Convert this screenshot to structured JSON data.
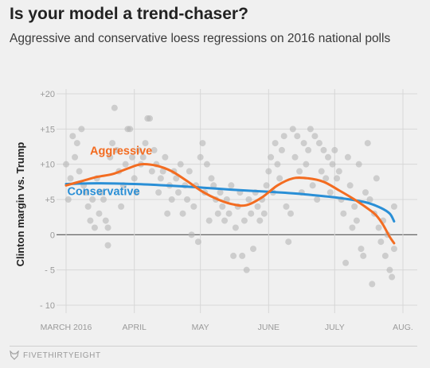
{
  "header": {
    "title": "Is your model a trend-chaser?",
    "subtitle": "Aggressive and conservative loess regressions on 2016 national polls"
  },
  "footer": {
    "brand": "FIVETHIRTYEIGHT",
    "icon": "fivethirtyeight-fox-icon"
  },
  "chart_data": {
    "type": "scatter",
    "xlabel": "",
    "ylabel": "Clinton margin vs. Trump",
    "x_domain": [
      "2016-03-01",
      "2016-08-01"
    ],
    "ylim": [
      -10,
      20
    ],
    "y_ticks": [
      {
        "value": 20,
        "label": "+20"
      },
      {
        "value": 15,
        "label": "+15"
      },
      {
        "value": 10,
        "label": "+10"
      },
      {
        "value": 5,
        "label": "+5"
      },
      {
        "value": 0,
        "label": "0"
      },
      {
        "value": -5,
        "label": "- 5"
      },
      {
        "value": -10,
        "label": "- 10"
      }
    ],
    "x_ticks": [
      {
        "date": "2016-03-01",
        "label": "MARCH 2016"
      },
      {
        "date": "2016-04-01",
        "label": "APRIL"
      },
      {
        "date": "2016-05-01",
        "label": "MAY"
      },
      {
        "date": "2016-06-01",
        "label": "JUNE"
      },
      {
        "date": "2016-07-01",
        "label": "JULY"
      },
      {
        "date": "2016-08-01",
        "label": "AUG."
      }
    ],
    "grid": true,
    "colors": {
      "aggressive": "#f36c21",
      "conservative": "#2a8fd6",
      "polls": "#b5b5b5",
      "grid": "#d7d7d7",
      "zero_line": "#555555"
    },
    "annotations": [
      {
        "text": "Aggressive",
        "series": "aggressive",
        "date": "2016-03-26",
        "y": 11.4
      },
      {
        "text": "Conservative",
        "series": "conservative",
        "date": "2016-03-18",
        "y": 5.6
      }
    ],
    "series": [
      {
        "name": "Aggressive",
        "key": "aggressive",
        "kind": "line",
        "points": [
          [
            "2016-03-01",
            7.0
          ],
          [
            "2016-03-08",
            7.6
          ],
          [
            "2016-03-15",
            8.2
          ],
          [
            "2016-03-22",
            8.6
          ],
          [
            "2016-03-29",
            9.4
          ],
          [
            "2016-04-04",
            10.0
          ],
          [
            "2016-04-11",
            9.8
          ],
          [
            "2016-04-18",
            9.0
          ],
          [
            "2016-04-25",
            7.6
          ],
          [
            "2016-05-02",
            6.1
          ],
          [
            "2016-05-09",
            5.0
          ],
          [
            "2016-05-16",
            4.3
          ],
          [
            "2016-05-22",
            4.2
          ],
          [
            "2016-05-29",
            5.3
          ],
          [
            "2016-06-05",
            7.0
          ],
          [
            "2016-06-12",
            8.0
          ],
          [
            "2016-06-19",
            8.0
          ],
          [
            "2016-06-26",
            7.5
          ],
          [
            "2016-07-03",
            6.3
          ],
          [
            "2016-07-10",
            5.0
          ],
          [
            "2016-07-17",
            3.5
          ],
          [
            "2016-07-20",
            2.7
          ],
          [
            "2016-07-23",
            1.4
          ],
          [
            "2016-07-26",
            -0.3
          ],
          [
            "2016-07-28",
            -1.2
          ]
        ]
      },
      {
        "name": "Conservative",
        "key": "conservative",
        "kind": "line",
        "points": [
          [
            "2016-03-01",
            7.2
          ],
          [
            "2016-03-15",
            7.3
          ],
          [
            "2016-04-01",
            7.2
          ],
          [
            "2016-04-15",
            7.0
          ],
          [
            "2016-05-01",
            6.7
          ],
          [
            "2016-05-15",
            6.4
          ],
          [
            "2016-06-01",
            6.1
          ],
          [
            "2016-06-15",
            5.8
          ],
          [
            "2016-07-01",
            5.3
          ],
          [
            "2016-07-15",
            4.6
          ],
          [
            "2016-07-22",
            3.8
          ],
          [
            "2016-07-26",
            3.0
          ],
          [
            "2016-07-28",
            1.9
          ]
        ]
      },
      {
        "name": "",
        "key": "polls",
        "kind": "points",
        "points": [
          [
            "2016-03-01",
            10
          ],
          [
            "2016-03-02",
            5
          ],
          [
            "2016-03-03",
            8
          ],
          [
            "2016-03-04",
            14
          ],
          [
            "2016-03-05",
            11
          ],
          [
            "2016-03-06",
            13
          ],
          [
            "2016-03-07",
            9
          ],
          [
            "2016-03-08",
            15
          ],
          [
            "2016-03-09",
            7
          ],
          [
            "2016-03-10",
            6
          ],
          [
            "2016-03-11",
            4
          ],
          [
            "2016-03-12",
            2
          ],
          [
            "2016-03-13",
            5
          ],
          [
            "2016-03-14",
            1
          ],
          [
            "2016-03-15",
            8
          ],
          [
            "2016-03-16",
            3
          ],
          [
            "2016-03-17",
            6
          ],
          [
            "2016-03-18",
            5
          ],
          [
            "2016-03-19",
            2
          ],
          [
            "2016-03-20",
            -1.5
          ],
          [
            "2016-03-20",
            1
          ],
          [
            "2016-03-21",
            11
          ],
          [
            "2016-03-22",
            13
          ],
          [
            "2016-03-23",
            18
          ],
          [
            "2016-03-24",
            12
          ],
          [
            "2016-03-25",
            9
          ],
          [
            "2016-03-26",
            4
          ],
          [
            "2016-03-27",
            7
          ],
          [
            "2016-03-28",
            10
          ],
          [
            "2016-03-29",
            15
          ],
          [
            "2016-03-30",
            15
          ],
          [
            "2016-03-31",
            11
          ],
          [
            "2016-04-01",
            8
          ],
          [
            "2016-04-02",
            6
          ],
          [
            "2016-04-03",
            12
          ],
          [
            "2016-04-04",
            10
          ],
          [
            "2016-04-05",
            11
          ],
          [
            "2016-04-06",
            13
          ],
          [
            "2016-04-07",
            16.5
          ],
          [
            "2016-04-08",
            16.5
          ],
          [
            "2016-04-09",
            9
          ],
          [
            "2016-04-10",
            12
          ],
          [
            "2016-04-11",
            10
          ],
          [
            "2016-04-12",
            6
          ],
          [
            "2016-04-13",
            8
          ],
          [
            "2016-04-14",
            9
          ],
          [
            "2016-04-15",
            11
          ],
          [
            "2016-04-16",
            3
          ],
          [
            "2016-04-17",
            7
          ],
          [
            "2016-04-18",
            5
          ],
          [
            "2016-04-19",
            9
          ],
          [
            "2016-04-20",
            8
          ],
          [
            "2016-04-21",
            6
          ],
          [
            "2016-04-22",
            10
          ],
          [
            "2016-04-23",
            3
          ],
          [
            "2016-04-24",
            7
          ],
          [
            "2016-04-25",
            5
          ],
          [
            "2016-04-26",
            9
          ],
          [
            "2016-04-27",
            0
          ],
          [
            "2016-04-28",
            4
          ],
          [
            "2016-04-29",
            7
          ],
          [
            "2016-04-30",
            -1
          ],
          [
            "2016-05-01",
            11
          ],
          [
            "2016-05-02",
            13
          ],
          [
            "2016-05-03",
            6
          ],
          [
            "2016-05-04",
            10
          ],
          [
            "2016-05-05",
            2
          ],
          [
            "2016-05-06",
            8
          ],
          [
            "2016-05-07",
            7
          ],
          [
            "2016-05-08",
            5
          ],
          [
            "2016-05-09",
            3
          ],
          [
            "2016-05-10",
            6
          ],
          [
            "2016-05-11",
            4
          ],
          [
            "2016-05-12",
            2
          ],
          [
            "2016-05-13",
            5
          ],
          [
            "2016-05-14",
            3
          ],
          [
            "2016-05-15",
            7
          ],
          [
            "2016-05-16",
            -3
          ],
          [
            "2016-05-17",
            1
          ],
          [
            "2016-05-18",
            4
          ],
          [
            "2016-05-19",
            6
          ],
          [
            "2016-05-20",
            -3
          ],
          [
            "2016-05-21",
            2
          ],
          [
            "2016-05-22",
            -5
          ],
          [
            "2016-05-23",
            5
          ],
          [
            "2016-05-24",
            3
          ],
          [
            "2016-05-25",
            -2
          ],
          [
            "2016-05-26",
            6
          ],
          [
            "2016-05-27",
            4
          ],
          [
            "2016-05-28",
            2
          ],
          [
            "2016-05-29",
            5
          ],
          [
            "2016-05-30",
            3
          ],
          [
            "2016-05-31",
            7
          ],
          [
            "2016-06-01",
            9
          ],
          [
            "2016-06-02",
            11
          ],
          [
            "2016-06-03",
            6
          ],
          [
            "2016-06-04",
            13
          ],
          [
            "2016-06-05",
            10
          ],
          [
            "2016-06-06",
            8
          ],
          [
            "2016-06-07",
            12
          ],
          [
            "2016-06-08",
            14
          ],
          [
            "2016-06-09",
            4
          ],
          [
            "2016-06-10",
            -1
          ],
          [
            "2016-06-11",
            3
          ],
          [
            "2016-06-12",
            15
          ],
          [
            "2016-06-13",
            11
          ],
          [
            "2016-06-14",
            14
          ],
          [
            "2016-06-15",
            9
          ],
          [
            "2016-06-16",
            6
          ],
          [
            "2016-06-17",
            13
          ],
          [
            "2016-06-18",
            10
          ],
          [
            "2016-06-19",
            12
          ],
          [
            "2016-06-20",
            15
          ],
          [
            "2016-06-21",
            7
          ],
          [
            "2016-06-22",
            14
          ],
          [
            "2016-06-23",
            5
          ],
          [
            "2016-06-24",
            13
          ],
          [
            "2016-06-25",
            9
          ],
          [
            "2016-06-26",
            12
          ],
          [
            "2016-06-27",
            8
          ],
          [
            "2016-06-28",
            11
          ],
          [
            "2016-06-29",
            6
          ],
          [
            "2016-06-30",
            10
          ],
          [
            "2016-07-01",
            12
          ],
          [
            "2016-07-02",
            8
          ],
          [
            "2016-07-03",
            9
          ],
          [
            "2016-07-04",
            5
          ],
          [
            "2016-07-05",
            3
          ],
          [
            "2016-07-06",
            -4
          ],
          [
            "2016-07-07",
            11
          ],
          [
            "2016-07-08",
            7
          ],
          [
            "2016-07-09",
            1
          ],
          [
            "2016-07-10",
            4
          ],
          [
            "2016-07-11",
            2
          ],
          [
            "2016-07-12",
            10
          ],
          [
            "2016-07-13",
            -2
          ],
          [
            "2016-07-14",
            -3
          ],
          [
            "2016-07-15",
            6
          ],
          [
            "2016-07-16",
            13
          ],
          [
            "2016-07-17",
            5
          ],
          [
            "2016-07-18",
            -7
          ],
          [
            "2016-07-19",
            3
          ],
          [
            "2016-07-20",
            8
          ],
          [
            "2016-07-21",
            1
          ],
          [
            "2016-07-22",
            -1
          ],
          [
            "2016-07-23",
            2
          ],
          [
            "2016-07-24",
            -3
          ],
          [
            "2016-07-25",
            0
          ],
          [
            "2016-07-26",
            -5
          ],
          [
            "2016-07-27",
            -6
          ],
          [
            "2016-07-28",
            4
          ],
          [
            "2016-07-28",
            -2
          ]
        ]
      }
    ]
  }
}
